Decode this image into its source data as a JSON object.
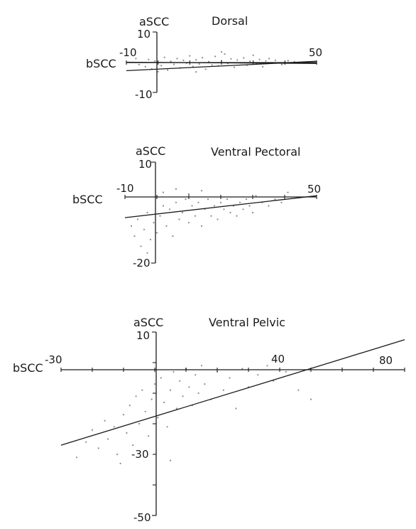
{
  "chart_data": [
    {
      "type": "scatter",
      "title": "Dorsal",
      "xlabel": "bSCC",
      "ylabel": "aSCC",
      "tick_labels": {
        "xmin": "-10",
        "xmax": "50",
        "ymax": "10",
        "ymin": "-10"
      },
      "xlim": [
        -10,
        50
      ],
      "ylim": [
        -10,
        10
      ],
      "grid": false,
      "regression_lines": [
        {
          "x": [
            -10,
            50
          ],
          "y": [
            0.0,
            -0.4
          ]
        },
        {
          "x": [
            -10,
            50
          ],
          "y": [
            -2.8,
            0.3
          ]
        }
      ],
      "points": [
        [
          -6,
          -0.8
        ],
        [
          -4,
          -1.5
        ],
        [
          -3,
          0.9
        ],
        [
          -2,
          -2.2
        ],
        [
          -1,
          0.4
        ],
        [
          1,
          -1.1
        ],
        [
          2,
          1.6
        ],
        [
          3,
          -2.6
        ],
        [
          4,
          0.3
        ],
        [
          5,
          -0.7
        ],
        [
          6,
          1.2
        ],
        [
          7,
          -1.9
        ],
        [
          8,
          0.6
        ],
        [
          9,
          -0.3
        ],
        [
          10,
          2.1
        ],
        [
          11,
          -1.4
        ],
        [
          12,
          0.8
        ],
        [
          13,
          -0.6
        ],
        [
          14,
          1.5
        ],
        [
          15,
          -2.3
        ],
        [
          16,
          0.2
        ],
        [
          17,
          -0.9
        ],
        [
          18,
          1.9
        ],
        [
          19,
          -1.2
        ],
        [
          20,
          0.5
        ],
        [
          21,
          2.7
        ],
        [
          22,
          -0.4
        ],
        [
          23,
          1.1
        ],
        [
          24,
          -1.7
        ],
        [
          25,
          0.7
        ],
        [
          26,
          -0.2
        ],
        [
          27,
          1.4
        ],
        [
          28,
          -1.0
        ],
        [
          29,
          0.3
        ],
        [
          30,
          2.3
        ],
        [
          31,
          -0.6
        ],
        [
          32,
          0.9
        ],
        [
          33,
          -1.5
        ],
        [
          34,
          0.4
        ],
        [
          35,
          1.2
        ],
        [
          36,
          -0.3
        ],
        [
          37,
          0.6
        ],
        [
          39,
          -0.8
        ],
        [
          41,
          0.5
        ],
        [
          43,
          0.2
        ],
        [
          46,
          -0.3
        ],
        [
          -7,
          1.2
        ],
        [
          0,
          -3.1
        ],
        [
          12,
          -3.2
        ],
        [
          20,
          3.4
        ]
      ]
    },
    {
      "type": "scatter",
      "title": "Ventral Pectoral",
      "xlabel": "bSCC",
      "ylabel": "aSCC",
      "tick_labels": {
        "xmin": "-10",
        "xmax": "50",
        "ymax": "10",
        "ymin": "-20"
      },
      "xlim": [
        -10,
        50
      ],
      "ylim": [
        -20,
        10
      ],
      "grid": false,
      "regression_lines": [
        {
          "x": [
            -10,
            50
          ],
          "y": [
            -6.5,
            0.0
          ]
        }
      ],
      "points": [
        [
          -8,
          -9
        ],
        [
          -7,
          -12
        ],
        [
          -6,
          -7
        ],
        [
          -5,
          -15
        ],
        [
          -4,
          -10
        ],
        [
          -3,
          -5
        ],
        [
          -2,
          -13
        ],
        [
          -1,
          -8
        ],
        [
          0,
          -11
        ],
        [
          1,
          -6
        ],
        [
          2,
          -3
        ],
        [
          3,
          -9
        ],
        [
          4,
          -4
        ],
        [
          5,
          -12
        ],
        [
          6,
          -2
        ],
        [
          7,
          -7
        ],
        [
          8,
          -5
        ],
        [
          9,
          -1
        ],
        [
          10,
          -8
        ],
        [
          11,
          -3
        ],
        [
          12,
          -6
        ],
        [
          13,
          -2
        ],
        [
          14,
          -9
        ],
        [
          15,
          -4
        ],
        [
          16,
          -1
        ],
        [
          17,
          -6
        ],
        [
          18,
          -3
        ],
        [
          19,
          -7
        ],
        [
          20,
          -2
        ],
        [
          21,
          -4
        ],
        [
          22,
          -1
        ],
        [
          23,
          -5
        ],
        [
          24,
          -3
        ],
        [
          25,
          -6
        ],
        [
          26,
          -2
        ],
        [
          27,
          -4
        ],
        [
          28,
          -1
        ],
        [
          29,
          -3
        ],
        [
          30,
          -5
        ],
        [
          31,
          0
        ],
        [
          33,
          -2
        ],
        [
          35,
          -3
        ],
        [
          37,
          -1
        ],
        [
          39,
          -2
        ],
        [
          41,
          1
        ],
        [
          2,
          1
        ],
        [
          6,
          2
        ],
        [
          10,
          0.5
        ],
        [
          14,
          1.5
        ],
        [
          -3,
          -17
        ]
      ]
    },
    {
      "type": "scatter",
      "title": "Ventral Pelvic",
      "xlabel": "bSCC",
      "ylabel": "aSCC",
      "tick_labels": {
        "xmin": "-30",
        "mid": "40",
        "xmax": "80",
        "ymax": "10",
        "ymid": "-30",
        "ymin": "-50"
      },
      "xlim": [
        -30,
        80
      ],
      "ylim": [
        -50,
        10
      ],
      "grid": false,
      "regression_lines": [
        {
          "x": [
            -30,
            80
          ],
          "y": [
            -27,
            7.5
          ]
        }
      ],
      "points": [
        [
          -22,
          -26
        ],
        [
          -20,
          -22
        ],
        [
          -18,
          -28
        ],
        [
          -16,
          -19
        ],
        [
          -15,
          -25
        ],
        [
          -13,
          -21
        ],
        [
          -12,
          -30
        ],
        [
          -10,
          -17
        ],
        [
          -9,
          -23
        ],
        [
          -8,
          -14
        ],
        [
          -7,
          -27
        ],
        [
          -6,
          -11
        ],
        [
          -5,
          -20
        ],
        [
          -4,
          -9
        ],
        [
          -3,
          -16
        ],
        [
          -2,
          -24
        ],
        [
          -1,
          -12
        ],
        [
          0,
          -7
        ],
        [
          1,
          -18
        ],
        [
          2,
          -5
        ],
        [
          3,
          -13
        ],
        [
          4,
          -21
        ],
        [
          5,
          -9
        ],
        [
          6,
          -3
        ],
        [
          7,
          -15
        ],
        [
          8,
          -6
        ],
        [
          9,
          -11
        ],
        [
          10,
          -2
        ],
        [
          11,
          -8
        ],
        [
          12,
          -14
        ],
        [
          13,
          -4
        ],
        [
          14,
          -10
        ],
        [
          15,
          -1
        ],
        [
          16,
          -7
        ],
        [
          18,
          -12
        ],
        [
          20,
          -3
        ],
        [
          22,
          -9
        ],
        [
          24,
          -5
        ],
        [
          26,
          -15
        ],
        [
          28,
          -2
        ],
        [
          30,
          -8
        ],
        [
          33,
          -4
        ],
        [
          36,
          -1
        ],
        [
          38,
          -6
        ],
        [
          42,
          -3
        ],
        [
          46,
          -9
        ],
        [
          50,
          -12
        ],
        [
          -25,
          -31
        ],
        [
          -11,
          -33
        ],
        [
          5,
          -32
        ]
      ]
    }
  ]
}
